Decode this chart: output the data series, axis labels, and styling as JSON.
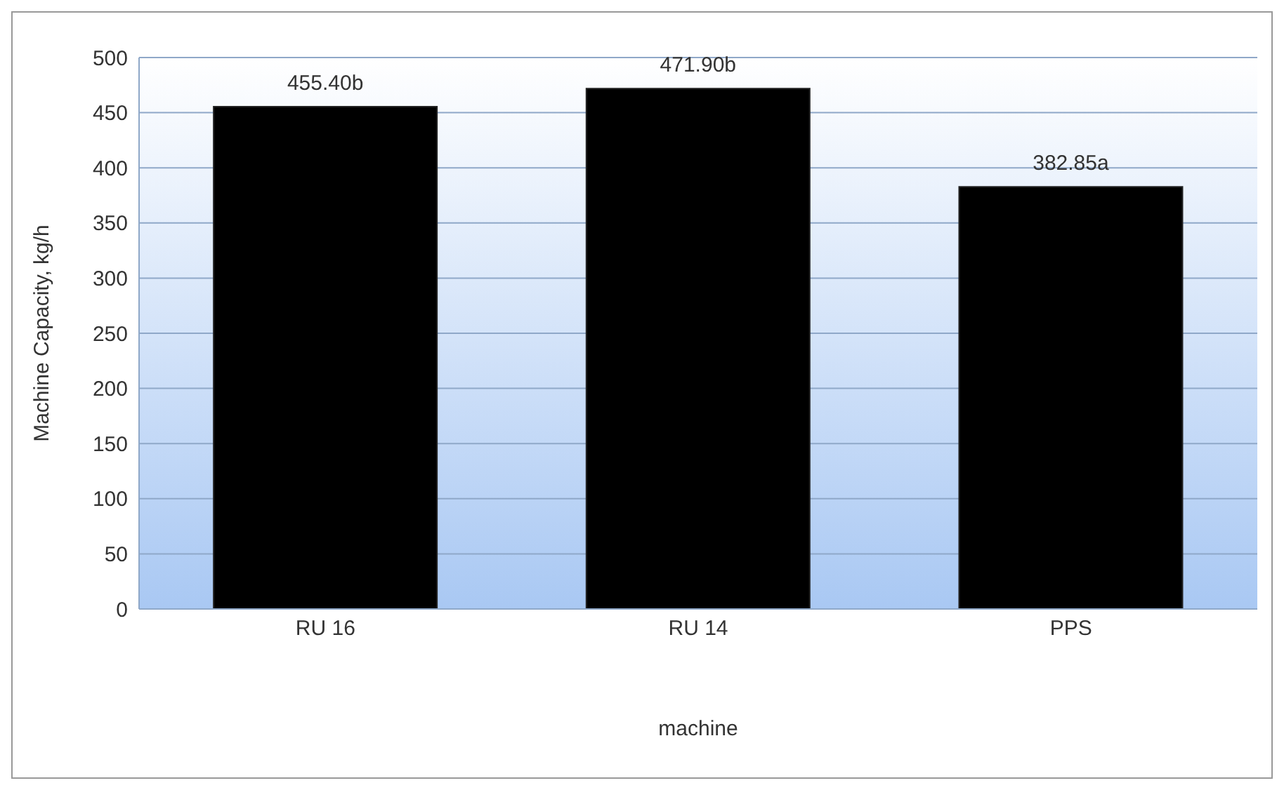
{
  "chart_data": {
    "type": "bar",
    "xlabel": "machine",
    "ylabel": "Machine Capacity, kg/h",
    "categories": [
      "RU 16",
      "RU 14",
      "PPS"
    ],
    "values": [
      455.4,
      471.9,
      382.85
    ],
    "value_labels": [
      "455.40b",
      "471.90b",
      "382.85a"
    ],
    "color": "#000000",
    "ylim": [
      0,
      500
    ],
    "yticks": [
      0,
      50,
      100,
      150,
      200,
      250,
      300,
      350,
      400,
      450,
      500
    ],
    "grid": "y",
    "legend": false
  }
}
